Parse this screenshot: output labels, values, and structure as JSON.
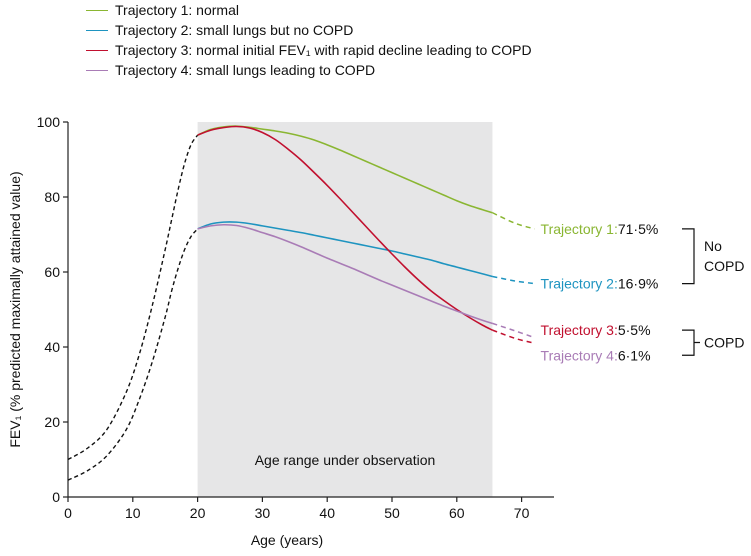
{
  "chart_data": {
    "type": "line",
    "xlabel": "Age (years)",
    "ylabel": "FEV₁ (% predicted maximally attained value)",
    "xlim": [
      0,
      75
    ],
    "ylim": [
      0,
      100
    ],
    "x_ticks": [
      0,
      10,
      20,
      30,
      40,
      50,
      60,
      70
    ],
    "y_ticks": [
      0,
      20,
      40,
      60,
      80,
      100
    ],
    "x_tick_labels": [
      "0",
      "10",
      "20",
      "30",
      "40",
      "50",
      "60",
      "70"
    ],
    "y_tick_labels": [
      "0",
      "20",
      "40",
      "60",
      "80",
      "100"
    ],
    "legend_position": "top-left",
    "grid": false,
    "shaded_region": {
      "x": [
        20,
        65.5
      ],
      "label": "Age range under observation",
      "color": "#e6e6e7"
    },
    "series": [
      {
        "name": "Trajectory 1: normal",
        "color": "#8ab632",
        "end_label": "Trajectory 1:",
        "end_value": "71·5%",
        "x": [
          20,
          22,
          24,
          26,
          28,
          30,
          32,
          34,
          36,
          38,
          40,
          42,
          44,
          46,
          48,
          50,
          52,
          54,
          56,
          58,
          60,
          62,
          64,
          65.5
        ],
        "y": [
          96.5,
          98,
          98.7,
          98.9,
          98.6,
          98.1,
          97.6,
          97,
          96.2,
          95.2,
          93.9,
          92.5,
          91,
          89.5,
          88,
          86.5,
          85,
          83.5,
          82,
          80.5,
          79,
          77.7,
          76.6,
          75.8
        ],
        "projection": {
          "x": [
            65.5,
            69,
            72
          ],
          "y": [
            75.8,
            73,
            71.5
          ]
        }
      },
      {
        "name": "Trajectory 2: small lungs but no COPD",
        "color": "#1e94c0",
        "end_label": "Trajectory 2:",
        "end_value": "16·9%",
        "x": [
          20,
          22,
          24,
          26,
          28,
          30,
          32,
          34,
          36,
          38,
          40,
          42,
          44,
          46,
          48,
          50,
          52,
          54,
          56,
          58,
          60,
          62,
          64,
          65.5
        ],
        "y": [
          71.5,
          72.8,
          73.3,
          73.3,
          72.9,
          72.3,
          71.7,
          71.1,
          70.5,
          69.8,
          69.1,
          68.4,
          67.7,
          67,
          66.3,
          65.6,
          64.8,
          64,
          63.2,
          62.2,
          61.3,
          60.4,
          59.5,
          58.8
        ],
        "projection": {
          "x": [
            65.5,
            69,
            72
          ],
          "y": [
            58.8,
            57.6,
            56.9
          ]
        }
      },
      {
        "name": "Trajectory 3: normal initial FEV₁ with rapid decline leading to COPD",
        "color": "#c1102f",
        "end_label": "Trajectory 3:",
        "end_value": "5·5%",
        "x": [
          20,
          22,
          24,
          26,
          28,
          30,
          32,
          34,
          36,
          38,
          40,
          42,
          44,
          46,
          48,
          50,
          52,
          54,
          56,
          58,
          60,
          62,
          64,
          65.5
        ],
        "y": [
          96.5,
          97.8,
          98.5,
          98.8,
          98.4,
          97.2,
          95.3,
          92.7,
          89.8,
          86.5,
          83.1,
          79.5,
          75.8,
          72.1,
          68.4,
          64.8,
          61.3,
          58,
          55,
          52.4,
          50,
          47.8,
          45.8,
          44.5
        ],
        "projection": {
          "x": [
            65.5,
            69,
            72
          ],
          "y": [
            44.5,
            42.3,
            41
          ]
        }
      },
      {
        "name": "Trajectory 4: small lungs leading to COPD",
        "color": "#a97cb6",
        "end_label": "Trajectory 4:",
        "end_value": "6·1%",
        "x": [
          20,
          22,
          24,
          26,
          28,
          30,
          32,
          34,
          36,
          38,
          40,
          42,
          44,
          46,
          48,
          50,
          52,
          54,
          56,
          58,
          60,
          62,
          64,
          65.5
        ],
        "y": [
          71.5,
          72.3,
          72.6,
          72.4,
          71.6,
          70.5,
          69.4,
          68.1,
          66.7,
          65.2,
          63.7,
          62.3,
          60.9,
          59.4,
          57.9,
          56.5,
          55.1,
          53.7,
          52.3,
          50.9,
          49.6,
          48.3,
          47.1,
          46.3
        ],
        "projection": {
          "x": [
            65.5,
            69,
            72
          ],
          "y": [
            46.3,
            44.3,
            42.5
          ]
        }
      }
    ],
    "early_life_curves": [
      {
        "x": [
          0,
          3,
          6,
          9,
          11,
          13,
          15,
          16,
          17,
          18,
          19,
          20
        ],
        "y": [
          10,
          13,
          18,
          28,
          38,
          51,
          66,
          74,
          82,
          89,
          94,
          96.5
        ]
      },
      {
        "x": [
          0,
          3,
          6,
          9,
          11,
          13,
          15,
          16,
          17,
          18,
          19,
          20
        ],
        "y": [
          4.5,
          7,
          11,
          18,
          26,
          36,
          48,
          55,
          61,
          66,
          69.5,
          71.5
        ]
      }
    ],
    "groups": [
      {
        "label_lines": [
          "No",
          "COPD"
        ],
        "members": [
          0,
          1
        ]
      },
      {
        "label_lines": [
          "COPD"
        ],
        "members": [
          2,
          3
        ]
      }
    ]
  }
}
